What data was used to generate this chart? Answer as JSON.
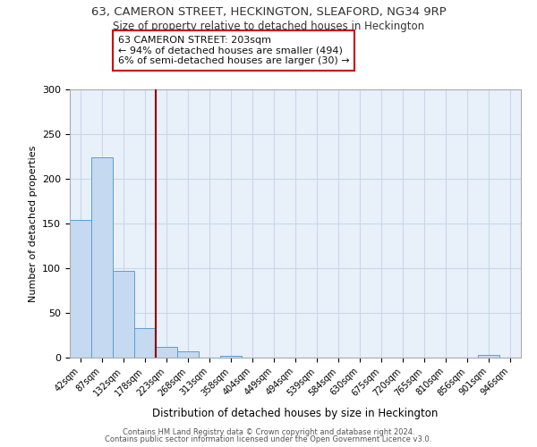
{
  "title": "63, CAMERON STREET, HECKINGTON, SLEAFORD, NG34 9RP",
  "subtitle": "Size of property relative to detached houses in Heckington",
  "xlabel": "Distribution of detached houses by size in Heckington",
  "ylabel": "Number of detached properties",
  "bar_color": "#c5d9f0",
  "bar_edge_color": "#5a9fd4",
  "grid_color": "#c8d8e8",
  "background_color": "#e8f0fa",
  "annotation_text": "63 CAMERON STREET: 203sqm\n← 94% of detached houses are smaller (494)\n6% of semi-detached houses are larger (30) →",
  "annotation_box_color": "#ffffff",
  "annotation_box_edge": "#cc0000",
  "vline_color": "#8b0000",
  "footer_line1": "Contains HM Land Registry data © Crown copyright and database right 2024.",
  "footer_line2": "Contains public sector information licensed under the Open Government Licence v3.0.",
  "categories": [
    "42sqm",
    "87sqm",
    "132sqm",
    "178sqm",
    "223sqm",
    "268sqm",
    "313sqm",
    "358sqm",
    "404sqm",
    "449sqm",
    "494sqm",
    "539sqm",
    "584sqm",
    "630sqm",
    "675sqm",
    "720sqm",
    "765sqm",
    "810sqm",
    "856sqm",
    "901sqm",
    "946sqm"
  ],
  "values": [
    154,
    224,
    97,
    33,
    12,
    7,
    0,
    2,
    0,
    0,
    0,
    0,
    0,
    0,
    0,
    0,
    0,
    0,
    0,
    3,
    0
  ],
  "vline_x": 3.5,
  "ylim": [
    0,
    300
  ],
  "yticks": [
    0,
    50,
    100,
    150,
    200,
    250,
    300
  ]
}
